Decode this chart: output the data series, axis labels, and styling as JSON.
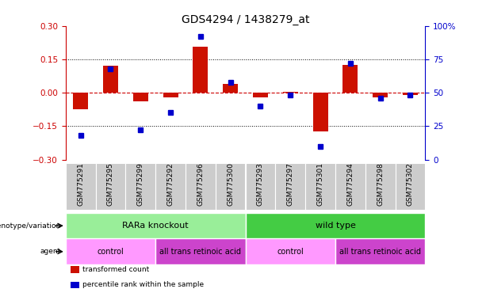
{
  "title": "GDS4294 / 1438279_at",
  "samples": [
    "GSM775291",
    "GSM775295",
    "GSM775299",
    "GSM775292",
    "GSM775296",
    "GSM775300",
    "GSM775293",
    "GSM775297",
    "GSM775301",
    "GSM775294",
    "GSM775298",
    "GSM775302"
  ],
  "red_bars": [
    -0.075,
    0.12,
    -0.04,
    -0.02,
    0.205,
    0.04,
    -0.02,
    0.005,
    -0.175,
    0.125,
    -0.02,
    -0.01
  ],
  "blue_dots": [
    18,
    68,
    22,
    35,
    92,
    58,
    40,
    48,
    10,
    72,
    46,
    48
  ],
  "ylim_left": [
    -0.3,
    0.3
  ],
  "ylim_right": [
    0,
    100
  ],
  "yticks_left": [
    -0.3,
    -0.15,
    0,
    0.15,
    0.3
  ],
  "yticks_right": [
    0,
    25,
    50,
    75,
    100
  ],
  "hlines": [
    0.15,
    -0.15
  ],
  "genotype_groups": [
    {
      "label": "RARa knockout",
      "start": 0,
      "end": 6,
      "color": "#99EE99"
    },
    {
      "label": "wild type",
      "start": 6,
      "end": 12,
      "color": "#44CC44"
    }
  ],
  "agent_groups": [
    {
      "label": "control",
      "start": 0,
      "end": 3,
      "color": "#FF99FF"
    },
    {
      "label": "all trans retinoic acid",
      "start": 3,
      "end": 6,
      "color": "#CC44CC"
    },
    {
      "label": "control",
      "start": 6,
      "end": 9,
      "color": "#FF99FF"
    },
    {
      "label": "all trans retinoic acid",
      "start": 9,
      "end": 12,
      "color": "#CC44CC"
    }
  ],
  "bar_color": "#CC1100",
  "dot_color": "#0000CC",
  "left_axis_color": "#CC0000",
  "right_axis_color": "#0000CC",
  "zero_line_color": "#CC0000",
  "hline_color": "black",
  "sample_box_color": "#CCCCCC",
  "bg_color": "white",
  "label_fontsize": 6.5,
  "tick_fontsize": 7.5,
  "title_fontsize": 10,
  "sample_fontsize": 6.5,
  "geno_fontsize": 8,
  "agent_fontsize": 7
}
